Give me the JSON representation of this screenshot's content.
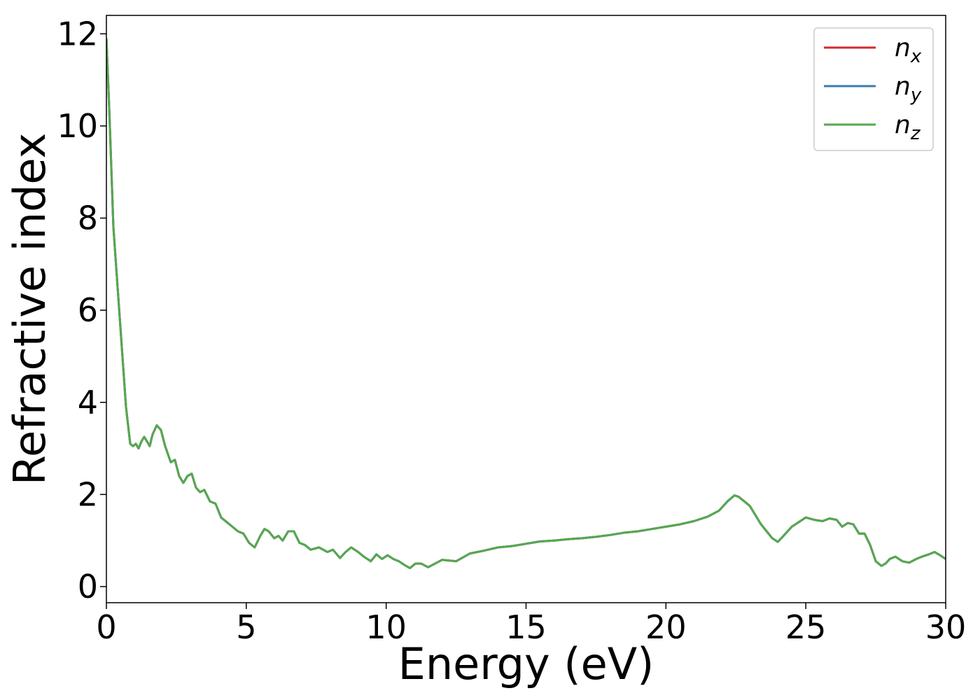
{
  "chart_data": {
    "type": "line",
    "title": "",
    "xlabel": "Energy (eV)",
    "ylabel": "Refractive index",
    "xlim": [
      0,
      30
    ],
    "ylim": [
      -0.35,
      12.4
    ],
    "xticks": [
      0,
      5,
      10,
      15,
      20,
      25,
      30
    ],
    "yticks": [
      0,
      2,
      4,
      6,
      8,
      10,
      12
    ],
    "grid": false,
    "legend_position": "top-right",
    "series": [
      {
        "name": "n_x",
        "base": "n",
        "sub": "x",
        "color": "#d62728"
      },
      {
        "name": "n_y",
        "base": "n",
        "sub": "y",
        "color": "#3a7bb0"
      },
      {
        "name": "n_z",
        "base": "n",
        "sub": "z",
        "color": "#55a84f"
      }
    ],
    "x": [
      0.0,
      0.1,
      0.25,
      0.4,
      0.55,
      0.7,
      0.85,
      0.95,
      1.05,
      1.15,
      1.25,
      1.35,
      1.45,
      1.55,
      1.65,
      1.8,
      1.95,
      2.1,
      2.3,
      2.45,
      2.6,
      2.75,
      2.9,
      3.05,
      3.2,
      3.35,
      3.5,
      3.7,
      3.9,
      4.1,
      4.3,
      4.5,
      4.7,
      4.9,
      5.1,
      5.3,
      5.5,
      5.65,
      5.8,
      6.0,
      6.15,
      6.3,
      6.5,
      6.7,
      6.9,
      7.1,
      7.3,
      7.6,
      7.9,
      8.1,
      8.35,
      8.55,
      8.75,
      9.0,
      9.2,
      9.45,
      9.65,
      9.85,
      10.05,
      10.25,
      10.45,
      10.65,
      10.85,
      11.05,
      11.25,
      11.5,
      11.75,
      12.0,
      12.5,
      13.0,
      13.5,
      14.0,
      14.5,
      15.0,
      15.5,
      16.0,
      16.5,
      17.0,
      17.5,
      18.0,
      18.5,
      19.0,
      19.5,
      20.0,
      20.5,
      21.0,
      21.5,
      21.9,
      22.2,
      22.45,
      22.6,
      22.8,
      23.0,
      23.2,
      23.4,
      23.6,
      23.8,
      24.0,
      24.2,
      24.5,
      24.8,
      25.0,
      25.3,
      25.6,
      25.85,
      26.1,
      26.3,
      26.5,
      26.7,
      26.9,
      27.1,
      27.3,
      27.5,
      27.7,
      27.85,
      28.0,
      28.2,
      28.45,
      28.7,
      28.95,
      29.15,
      29.4,
      29.6,
      29.8,
      30.0
    ],
    "y": [
      11.9,
      10.4,
      7.8,
      6.5,
      5.2,
      3.9,
      3.1,
      3.05,
      3.1,
      3.0,
      3.15,
      3.25,
      3.15,
      3.05,
      3.3,
      3.5,
      3.4,
      3.05,
      2.7,
      2.75,
      2.4,
      2.25,
      2.4,
      2.45,
      2.15,
      2.05,
      2.1,
      1.85,
      1.8,
      1.5,
      1.4,
      1.3,
      1.2,
      1.15,
      0.95,
      0.85,
      1.1,
      1.25,
      1.2,
      1.05,
      1.1,
      1.0,
      1.2,
      1.2,
      0.95,
      0.9,
      0.8,
      0.85,
      0.75,
      0.8,
      0.62,
      0.75,
      0.85,
      0.75,
      0.65,
      0.55,
      0.7,
      0.6,
      0.68,
      0.6,
      0.55,
      0.47,
      0.4,
      0.5,
      0.5,
      0.42,
      0.5,
      0.58,
      0.55,
      0.72,
      0.78,
      0.85,
      0.88,
      0.93,
      0.98,
      1.0,
      1.03,
      1.05,
      1.08,
      1.12,
      1.17,
      1.2,
      1.25,
      1.3,
      1.35,
      1.42,
      1.52,
      1.65,
      1.85,
      1.98,
      1.95,
      1.85,
      1.75,
      1.55,
      1.35,
      1.2,
      1.05,
      0.97,
      1.1,
      1.3,
      1.42,
      1.5,
      1.45,
      1.42,
      1.48,
      1.45,
      1.3,
      1.38,
      1.35,
      1.15,
      1.15,
      0.9,
      0.55,
      0.45,
      0.5,
      0.6,
      0.65,
      0.55,
      0.52,
      0.6,
      0.65,
      0.7,
      0.75,
      0.68,
      0.6
    ]
  }
}
